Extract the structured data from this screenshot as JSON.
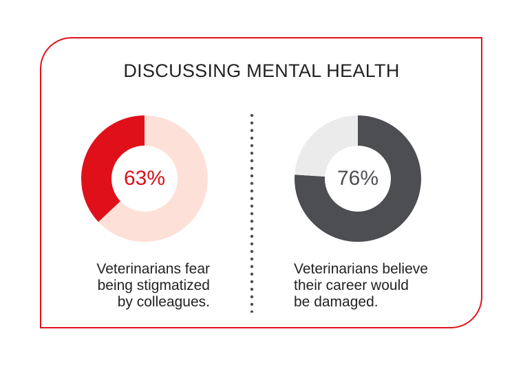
{
  "title": "DISCUSSING MENTAL HEALTH",
  "chart_data": [
    {
      "type": "pie",
      "donut": true,
      "label": "63%",
      "value": 63,
      "caption": [
        "Veterinarians fear",
        "being stigmatized",
        "by colleagues."
      ],
      "colors": {
        "highlight": "#e0101b",
        "remainder": "#fde1d9",
        "label": "#d8111b"
      }
    },
    {
      "type": "pie",
      "donut": true,
      "label": "76%",
      "value": 76,
      "caption": [
        "Veterinarians believe",
        "their career would",
        "be damaged."
      ],
      "colors": {
        "highlight": "#4d4e52",
        "remainder": "#ebebeb",
        "label": "#4d4e52"
      }
    }
  ],
  "colors": {
    "border": "#e0101b",
    "text": "#222222",
    "divider": "#4d4e52"
  }
}
